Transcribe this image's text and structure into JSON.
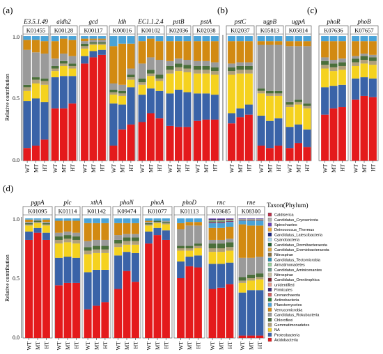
{
  "panels": [
    {
      "label": "(a)"
    },
    {
      "label": "(b)"
    },
    {
      "label": "(c)"
    },
    {
      "label": "(d)"
    }
  ],
  "chart_data": {
    "type": "bar",
    "subtype": "stacked-100%",
    "ylabel": "Relative contribution",
    "yticks": [
      "0.0",
      "0.5",
      "1.0"
    ],
    "ylim": [
      0,
      1
    ],
    "categories": [
      "WT",
      "MT",
      "HT"
    ],
    "legend_title": "Taxon(Phylum)",
    "legend_position": "right",
    "taxa": [
      {
        "name": "Acidobacteria",
        "color": "#e41a1c"
      },
      {
        "name": "Proteobacteria",
        "color": "#3a63a8"
      },
      {
        "name": "NA",
        "color": "#f5d21f"
      },
      {
        "name": "Gemmatimonadetes",
        "color": "#b0a07a"
      },
      {
        "name": "Chloroflexi",
        "color": "#4a6f3a"
      },
      {
        "name": "Candidatus_Rokubacteria",
        "color": "#9a9a9a"
      },
      {
        "name": "Verrucomicrobia",
        "color": "#d28a12"
      },
      {
        "name": "Planctomycetes",
        "color": "#4aa3d8"
      },
      {
        "name": "Actinobacteria",
        "color": "#2e7d32"
      },
      {
        "name": "Crenarchaeota",
        "color": "#d35f5f"
      },
      {
        "name": "Firmicutes",
        "color": "#3d2a7a"
      },
      {
        "name": "unidentified",
        "color": "#e69a8a"
      },
      {
        "name": "Candidatus_Omnitrophica",
        "color": "#7a1f2b"
      },
      {
        "name": "Nitrospirae",
        "color": "#c8bfa0"
      },
      {
        "name": "Candidatus_Aminicenantes",
        "color": "#6c9a8a"
      },
      {
        "name": "Armatimonadetes",
        "color": "#9bd19b"
      },
      {
        "name": "Candidatus_Tectomicrobia",
        "color": "#2f8fb0"
      },
      {
        "name": "Nitrospirae",
        "color": "#8b6f3a"
      },
      {
        "name": "Candidatus_Eremiobacteraeota",
        "color": "#d9a53f"
      },
      {
        "name": "Candidatus_Dormibacteraeota",
        "color": "#1f5f2f"
      },
      {
        "name": "Cyanobacteria",
        "color": "#a7d7ef"
      },
      {
        "name": "Candidatus_Latescibacteria",
        "color": "#1a237e"
      },
      {
        "name": "Deinococcus_Thermus",
        "color": "#f0a53a"
      },
      {
        "name": "Spirochaetes",
        "color": "#6a3fb8"
      },
      {
        "name": "Candidatus_Cryosericota",
        "color": "#b0b0b0"
      },
      {
        "name": "Caldiserica",
        "color": "#b8324a"
      }
    ],
    "genes": [
      {
        "panel": "a",
        "gene": "E3.5.1.49",
        "ko": "K01455",
        "series": [
          [
            0.1,
            0.38,
            0.08,
            0.03,
            0.02,
            0.28,
            0.08,
            0.03
          ],
          [
            0.12,
            0.38,
            0.12,
            0.03,
            0.02,
            0.2,
            0.1,
            0.03
          ],
          [
            0.17,
            0.3,
            0.14,
            0.03,
            0.02,
            0.2,
            0.1,
            0.04
          ]
        ]
      },
      {
        "panel": "a",
        "gene": "aldh2",
        "ko": "K00128",
        "series": [
          [
            0.42,
            0.25,
            0.05,
            0.02,
            0.02,
            0.06,
            0.14,
            0.04
          ],
          [
            0.42,
            0.26,
            0.08,
            0.02,
            0.02,
            0.06,
            0.12,
            0.02
          ],
          [
            0.46,
            0.22,
            0.06,
            0.02,
            0.02,
            0.06,
            0.13,
            0.03
          ]
        ]
      },
      {
        "panel": "a",
        "gene": "gcd",
        "ko": "K00117",
        "series": [
          [
            0.78,
            0.06,
            0.06,
            0.02,
            0.02,
            0.02,
            0.02,
            0.02
          ],
          [
            0.83,
            0.05,
            0.05,
            0.01,
            0.01,
            0.02,
            0.01,
            0.02
          ],
          [
            0.85,
            0.04,
            0.04,
            0.01,
            0.01,
            0.02,
            0.01,
            0.02
          ]
        ]
      },
      {
        "panel": "a",
        "gene": "ldh",
        "ko": "K00016",
        "series": [
          [
            0.12,
            0.34,
            0.07,
            0.02,
            0.02,
            0.05,
            0.3,
            0.08
          ],
          [
            0.25,
            0.2,
            0.07,
            0.02,
            0.02,
            0.05,
            0.33,
            0.06
          ],
          [
            0.29,
            0.3,
            0.06,
            0.02,
            0.02,
            0.05,
            0.2,
            0.06
          ]
        ]
      },
      {
        "panel": "a",
        "gene": "EC1.1.2.4",
        "ko": "K00102",
        "series": [
          [
            0.31,
            0.22,
            0.08,
            0.02,
            0.03,
            0.12,
            0.18,
            0.04
          ],
          [
            0.38,
            0.2,
            0.1,
            0.02,
            0.03,
            0.1,
            0.15,
            0.02
          ],
          [
            0.34,
            0.22,
            0.08,
            0.02,
            0.03,
            0.12,
            0.15,
            0.04
          ]
        ]
      },
      {
        "panel": "a",
        "gene": "pstB",
        "ko": "K02036",
        "series": [
          [
            0.28,
            0.26,
            0.16,
            0.03,
            0.03,
            0.04,
            0.16,
            0.04
          ],
          [
            0.27,
            0.3,
            0.15,
            0.03,
            0.03,
            0.04,
            0.14,
            0.04
          ],
          [
            0.27,
            0.28,
            0.16,
            0.03,
            0.03,
            0.04,
            0.15,
            0.04
          ]
        ]
      },
      {
        "panel": "a",
        "gene": "pstA",
        "ko": "K02038",
        "series": [
          [
            0.32,
            0.22,
            0.16,
            0.03,
            0.03,
            0.04,
            0.16,
            0.04
          ],
          [
            0.33,
            0.21,
            0.16,
            0.03,
            0.03,
            0.04,
            0.16,
            0.04
          ],
          [
            0.33,
            0.2,
            0.16,
            0.03,
            0.03,
            0.04,
            0.17,
            0.04
          ]
        ]
      },
      {
        "panel": "b",
        "gene": "pstC",
        "ko": "K02037",
        "series": [
          [
            0.3,
            0.08,
            0.31,
            0.03,
            0.03,
            0.03,
            0.18,
            0.04
          ],
          [
            0.35,
            0.07,
            0.28,
            0.03,
            0.03,
            0.03,
            0.17,
            0.04
          ],
          [
            0.37,
            0.08,
            0.25,
            0.03,
            0.03,
            0.03,
            0.17,
            0.04
          ]
        ]
      },
      {
        "panel": "b",
        "gene": "ugpB",
        "ko": "K05813",
        "series": [
          [
            0.12,
            0.24,
            0.18,
            0.02,
            0.02,
            0.35,
            0.03,
            0.04
          ],
          [
            0.1,
            0.22,
            0.2,
            0.02,
            0.02,
            0.37,
            0.03,
            0.04
          ],
          [
            0.12,
            0.22,
            0.18,
            0.02,
            0.02,
            0.37,
            0.03,
            0.04
          ]
        ]
      },
      {
        "panel": "b",
        "gene": "ugpA",
        "ko": "K05814",
        "series": [
          [
            0.1,
            0.17,
            0.16,
            0.02,
            0.02,
            0.45,
            0.04,
            0.04
          ],
          [
            0.14,
            0.15,
            0.16,
            0.02,
            0.02,
            0.43,
            0.04,
            0.04
          ],
          [
            0.11,
            0.14,
            0.17,
            0.02,
            0.02,
            0.46,
            0.04,
            0.04
          ]
        ]
      },
      {
        "panel": "c",
        "gene": "phoR",
        "ko": "K07636",
        "series": [
          [
            0.37,
            0.22,
            0.15,
            0.03,
            0.03,
            0.03,
            0.13,
            0.04
          ],
          [
            0.42,
            0.18,
            0.12,
            0.03,
            0.03,
            0.03,
            0.15,
            0.04
          ],
          [
            0.43,
            0.18,
            0.12,
            0.03,
            0.03,
            0.03,
            0.14,
            0.04
          ]
        ]
      },
      {
        "panel": "c",
        "gene": "phoB",
        "ko": "K07657",
        "series": [
          [
            0.49,
            0.17,
            0.1,
            0.03,
            0.03,
            0.02,
            0.12,
            0.04
          ],
          [
            0.52,
            0.15,
            0.11,
            0.03,
            0.03,
            0.02,
            0.1,
            0.04
          ],
          [
            0.51,
            0.15,
            0.11,
            0.03,
            0.03,
            0.02,
            0.11,
            0.04
          ]
        ]
      },
      {
        "panel": "d",
        "gene": "pgpA",
        "ko": "K01095",
        "series": [
          [
            0.82,
            0.07,
            0.05,
            0.01,
            0.01,
            0.01,
            0.02,
            0.01
          ],
          [
            0.88,
            0.04,
            0.04,
            0.01,
            0.01,
            0.01,
            0.0,
            0.01
          ],
          [
            0.82,
            0.06,
            0.06,
            0.01,
            0.01,
            0.01,
            0.02,
            0.01
          ]
        ]
      },
      {
        "panel": "d",
        "gene": "plc",
        "ko": "K01114",
        "series": [
          [
            0.44,
            0.23,
            0.12,
            0.03,
            0.03,
            0.03,
            0.1,
            0.02
          ],
          [
            0.46,
            0.22,
            0.12,
            0.03,
            0.03,
            0.03,
            0.09,
            0.02
          ],
          [
            0.46,
            0.21,
            0.12,
            0.03,
            0.03,
            0.03,
            0.1,
            0.02
          ]
        ]
      },
      {
        "panel": "d",
        "gene": "xthA",
        "ko": "K01142",
        "series": [
          [
            0.24,
            0.31,
            0.15,
            0.03,
            0.03,
            0.05,
            0.15,
            0.04
          ],
          [
            0.27,
            0.3,
            0.14,
            0.03,
            0.03,
            0.05,
            0.14,
            0.04
          ],
          [
            0.3,
            0.27,
            0.14,
            0.03,
            0.03,
            0.05,
            0.14,
            0.04
          ]
        ]
      },
      {
        "panel": "d",
        "gene": "phoN",
        "ko": "K09474",
        "series": [
          [
            0.41,
            0.28,
            0.07,
            0.03,
            0.03,
            0.04,
            0.1,
            0.04
          ],
          [
            0.56,
            0.16,
            0.06,
            0.03,
            0.03,
            0.03,
            0.09,
            0.04
          ],
          [
            0.47,
            0.24,
            0.07,
            0.03,
            0.03,
            0.03,
            0.09,
            0.04
          ]
        ]
      },
      {
        "panel": "d",
        "gene": "phoA",
        "ko": "K01077",
        "series": [
          [
            0.79,
            0.1,
            0.05,
            0.01,
            0.01,
            0.01,
            0.01,
            0.02
          ],
          [
            0.86,
            0.06,
            0.04,
            0.01,
            0.01,
            0.0,
            0.0,
            0.02
          ],
          [
            0.82,
            0.08,
            0.05,
            0.01,
            0.01,
            0.01,
            0.0,
            0.02
          ]
        ]
      },
      {
        "panel": "d",
        "gene": "phoD",
        "ko": "K01113",
        "series": [
          [
            0.5,
            0.14,
            0.09,
            0.02,
            0.02,
            0.14,
            0.05,
            0.04
          ],
          [
            0.6,
            0.08,
            0.05,
            0.02,
            0.02,
            0.17,
            0.03,
            0.03
          ],
          [
            0.59,
            0.1,
            0.06,
            0.02,
            0.02,
            0.15,
            0.03,
            0.03
          ]
        ]
      },
      {
        "panel": "d",
        "gene": "rnc",
        "ko": "K03685",
        "series": [
          [
            0.41,
            0.21,
            0.1,
            0.03,
            0.04,
            0.03,
            0.1,
            0.04
          ],
          [
            0.42,
            0.2,
            0.1,
            0.03,
            0.04,
            0.03,
            0.1,
            0.04
          ],
          [
            0.45,
            0.18,
            0.1,
            0.03,
            0.04,
            0.03,
            0.1,
            0.04
          ]
        ]
      },
      {
        "panel": "d",
        "gene": "rne",
        "ko": "K08300",
        "series": [
          [
            0.02,
            0.36,
            0.08,
            0.02,
            0.03,
            0.16,
            0.28,
            0.03
          ],
          [
            0.02,
            0.38,
            0.08,
            0.02,
            0.03,
            0.14,
            0.27,
            0.04
          ],
          [
            0.02,
            0.38,
            0.09,
            0.02,
            0.03,
            0.14,
            0.26,
            0.04
          ]
        ]
      }
    ]
  }
}
